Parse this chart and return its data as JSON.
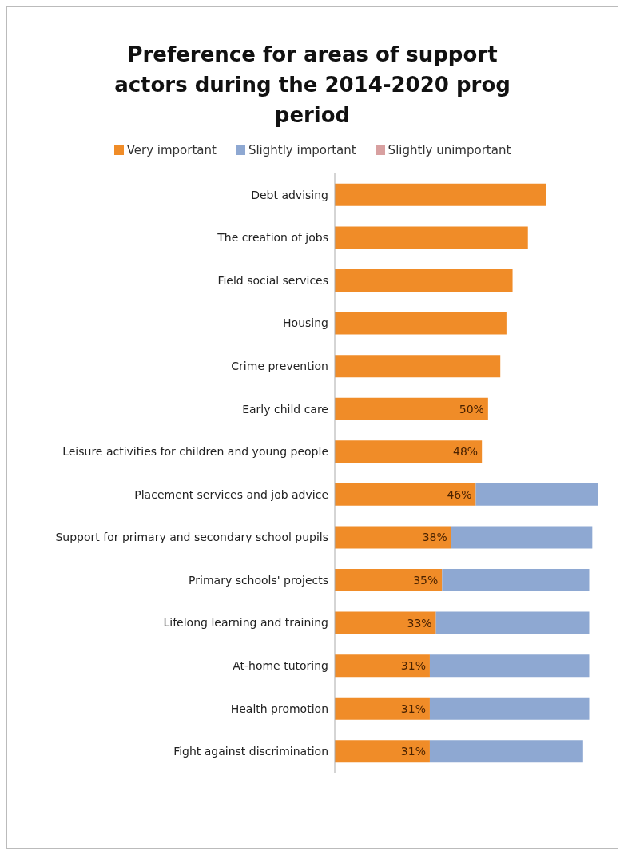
{
  "chart_data": {
    "type": "bar",
    "orientation": "horizontal",
    "stacked": true,
    "title": "Preference for areas of support\nactors during the 2014-2020 prog\nperiod",
    "categories": [
      "Debt advising",
      "The creation of jobs",
      "Field social services",
      "Housing",
      "Crime prevention",
      "Early child care",
      "Leisure activities for children and young people",
      "Placement services and job advice",
      "Support for primary and secondary school pupils",
      "Primary schools' projects",
      "Lifelong learning and training",
      "At-home tutoring",
      "Health promotion",
      "Fight against discrimination"
    ],
    "series": [
      {
        "name": "Very important",
        "color": "#f08c28",
        "values": [
          69,
          63,
          58,
          56,
          54,
          50,
          48,
          46,
          38,
          35,
          33,
          31,
          31,
          31
        ],
        "value_labels": [
          null,
          null,
          null,
          null,
          null,
          "50%",
          "48%",
          "46%",
          "38%",
          "35%",
          "33%",
          "31%",
          "31%",
          "31%"
        ]
      },
      {
        "name": "Slightly important",
        "color": "#8ea8d2",
        "values": [
          null,
          null,
          null,
          null,
          null,
          null,
          null,
          40,
          46,
          48,
          50,
          52,
          52,
          50
        ]
      },
      {
        "name": "Slightly unimportant",
        "color": "#d8a0a0",
        "values": [
          null,
          null,
          null,
          null,
          null,
          null,
          null,
          null,
          null,
          null,
          null,
          null,
          null,
          null
        ]
      }
    ],
    "legend": "top",
    "grid": false
  }
}
